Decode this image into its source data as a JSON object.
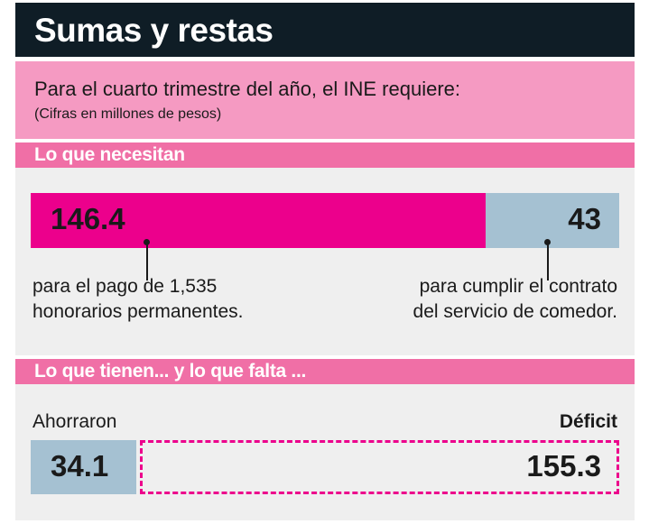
{
  "header": {
    "title": "Sumas y restas"
  },
  "intro": {
    "line1": "Para el cuarto trimestre del año, el INE requiere:",
    "line2": "(Cifras en millones de pesos)"
  },
  "sections": [
    {
      "label": "Lo que necesitan"
    },
    {
      "label": "Lo que tienen... y lo que falta ..."
    }
  ],
  "chart_data": [
    {
      "type": "bar",
      "orientation": "horizontal-stacked",
      "unit": "millones de pesos",
      "segments": [
        {
          "value": 146.4,
          "display": "146.4",
          "color": "#ec008c",
          "caption": [
            "para el pago de 1,535",
            "honorarios permanentes."
          ]
        },
        {
          "value": 43,
          "display": "43",
          "color": "#a5c1d2",
          "caption": [
            "para cumplir el contrato",
            "del servicio de comedor."
          ]
        }
      ]
    },
    {
      "type": "bar",
      "orientation": "horizontal-stacked",
      "unit": "millones de pesos",
      "segments": [
        {
          "value": 34.1,
          "display": "34.1",
          "label": "Ahorraron",
          "color": "#a5c1d2",
          "style": "solid"
        },
        {
          "value": 155.3,
          "display": "155.3",
          "label": "Déficit",
          "color": "#ec008c",
          "style": "dashed"
        }
      ]
    }
  ]
}
